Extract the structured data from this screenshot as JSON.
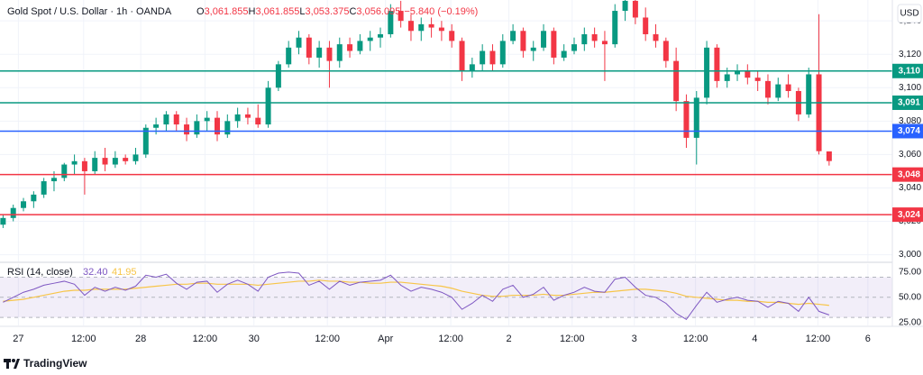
{
  "header": {
    "symbol": "Gold Spot / U.S. Dollar · 1h · OANDA",
    "ohlc": [
      {
        "key": "O",
        "value": "3,061.855"
      },
      {
        "key": "H",
        "value": "3,061.855"
      },
      {
        "key": "L",
        "value": "3,053.375"
      },
      {
        "key": "C",
        "value": "3,056.095"
      }
    ],
    "change": "−5.840 (−0.19%)",
    "currency": "USD"
  },
  "chart_data": [
    {
      "type": "candlestick",
      "up_color": "#089981",
      "down_color": "#f23645",
      "ohlc": [
        [
          3018,
          3024,
          3016,
          3022
        ],
        [
          3022,
          3030,
          3020,
          3028
        ],
        [
          3028,
          3034,
          3026,
          3032
        ],
        [
          3032,
          3038,
          3028,
          3036
        ],
        [
          3036,
          3046,
          3034,
          3044
        ],
        [
          3044,
          3050,
          3038,
          3046
        ],
        [
          3046,
          3055,
          3044,
          3054
        ],
        [
          3054,
          3060,
          3048,
          3056
        ],
        [
          3056,
          3058,
          3036,
          3050
        ],
        [
          3050,
          3062,
          3048,
          3058
        ],
        [
          3058,
          3064,
          3050,
          3054
        ],
        [
          3054,
          3062,
          3052,
          3058
        ],
        [
          3058,
          3060,
          3054,
          3056
        ],
        [
          3056,
          3064,
          3054,
          3060
        ],
        [
          3060,
          3078,
          3058,
          3076
        ],
        [
          3076,
          3082,
          3072,
          3078
        ],
        [
          3078,
          3086,
          3074,
          3084
        ],
        [
          3084,
          3086,
          3074,
          3078
        ],
        [
          3078,
          3082,
          3068,
          3072
        ],
        [
          3072,
          3084,
          3070,
          3080
        ],
        [
          3080,
          3086,
          3074,
          3082
        ],
        [
          3082,
          3086,
          3068,
          3072
        ],
        [
          3072,
          3084,
          3070,
          3080
        ],
        [
          3080,
          3088,
          3076,
          3084
        ],
        [
          3084,
          3088,
          3078,
          3082
        ],
        [
          3082,
          3090,
          3076,
          3078
        ],
        [
          3078,
          3104,
          3076,
          3100
        ],
        [
          3100,
          3116,
          3098,
          3114
        ],
        [
          3114,
          3128,
          3112,
          3124
        ],
        [
          3124,
          3134,
          3120,
          3130
        ],
        [
          3130,
          3132,
          3114,
          3118
        ],
        [
          3118,
          3128,
          3112,
          3124
        ],
        [
          3124,
          3128,
          3100,
          3116
        ],
        [
          3116,
          3130,
          3112,
          3126
        ],
        [
          3126,
          3130,
          3118,
          3122
        ],
        [
          3122,
          3132,
          3120,
          3128
        ],
        [
          3128,
          3134,
          3122,
          3130
        ],
        [
          3130,
          3136,
          3124,
          3132
        ],
        [
          3132,
          3150,
          3130,
          3146
        ],
        [
          3146,
          3152,
          3136,
          3140
        ],
        [
          3140,
          3144,
          3128,
          3134
        ],
        [
          3134,
          3142,
          3128,
          3138
        ],
        [
          3138,
          3142,
          3130,
          3136
        ],
        [
          3136,
          3140,
          3128,
          3134
        ],
        [
          3134,
          3138,
          3124,
          3128
        ],
        [
          3128,
          3130,
          3104,
          3110
        ],
        [
          3110,
          3118,
          3106,
          3114
        ],
        [
          3114,
          3126,
          3110,
          3122
        ],
        [
          3122,
          3126,
          3110,
          3114
        ],
        [
          3114,
          3132,
          3112,
          3128
        ],
        [
          3128,
          3138,
          3126,
          3134
        ],
        [
          3134,
          3136,
          3118,
          3122
        ],
        [
          3122,
          3128,
          3116,
          3124
        ],
        [
          3124,
          3138,
          3122,
          3134
        ],
        [
          3134,
          3136,
          3114,
          3118
        ],
        [
          3118,
          3126,
          3116,
          3122
        ],
        [
          3122,
          3130,
          3120,
          3126
        ],
        [
          3126,
          3136,
          3122,
          3132
        ],
        [
          3132,
          3136,
          3124,
          3128
        ],
        [
          3128,
          3134,
          3104,
          3126
        ],
        [
          3126,
          3150,
          3124,
          3146
        ],
        [
          3146,
          3156,
          3140,
          3152
        ],
        [
          3152,
          3155,
          3138,
          3142
        ],
        [
          3142,
          3148,
          3128,
          3132
        ],
        [
          3132,
          3138,
          3124,
          3128
        ],
        [
          3128,
          3130,
          3112,
          3116
        ],
        [
          3116,
          3124,
          3086,
          3092
        ],
        [
          3092,
          3096,
          3064,
          3070
        ],
        [
          3070,
          3098,
          3054,
          3094
        ],
        [
          3094,
          3128,
          3090,
          3124
        ],
        [
          3124,
          3126,
          3100,
          3104
        ],
        [
          3104,
          3112,
          3100,
          3108
        ],
        [
          3108,
          3114,
          3104,
          3110
        ],
        [
          3110,
          3114,
          3102,
          3106
        ],
        [
          3106,
          3110,
          3098,
          3104
        ],
        [
          3104,
          3108,
          3090,
          3094
        ],
        [
          3094,
          3106,
          3092,
          3102
        ],
        [
          3102,
          3108,
          3094,
          3098
        ],
        [
          3098,
          3100,
          3080,
          3084
        ],
        [
          3084,
          3112,
          3082,
          3108
        ],
        [
          3108,
          3144,
          3060,
          3062
        ],
        [
          3061.855,
          3061.855,
          3053.375,
          3056.095
        ]
      ],
      "xlim": [
        -0.3,
        87.2
      ],
      "xticks": [
        {
          "value": 1.5,
          "label": "27"
        },
        {
          "value": 7.9,
          "label": "12:00"
        },
        {
          "value": 13.5,
          "label": "28"
        },
        {
          "value": 19.8,
          "label": "12:00"
        },
        {
          "value": 24.6,
          "label": "30"
        },
        {
          "value": 31.8,
          "label": "12:00"
        },
        {
          "value": 37.5,
          "label": "Apr"
        },
        {
          "value": 43.9,
          "label": "12:00"
        },
        {
          "value": 49.6,
          "label": "2"
        },
        {
          "value": 55.8,
          "label": "12:00"
        },
        {
          "value": 61.9,
          "label": "3"
        },
        {
          "value": 67.9,
          "label": "12:00"
        },
        {
          "value": 73.7,
          "label": "4"
        },
        {
          "value": 79.9,
          "label": "12:00"
        },
        {
          "value": 84.8,
          "label": "6"
        }
      ],
      "ylim": [
        2996,
        3152.5
      ],
      "yticks": [
        {
          "value": 3000,
          "label": "3,000"
        },
        {
          "value": 3020,
          "label": "3,020"
        },
        {
          "value": 3040,
          "label": "3,040"
        },
        {
          "value": 3060,
          "label": "3,060"
        },
        {
          "value": 3080,
          "label": "3,080"
        },
        {
          "value": 3100,
          "label": "3,100"
        },
        {
          "value": 3120,
          "label": "3,120"
        },
        {
          "value": 3140,
          "label": "3,140"
        }
      ],
      "grid": true,
      "levels": [
        {
          "value": 3110,
          "label": "3,110",
          "color": "#089981"
        },
        {
          "value": 3091,
          "label": "3,091",
          "color": "#089981"
        },
        {
          "value": 3074,
          "label": "3,074",
          "color": "#2962ff"
        },
        {
          "value": 3048,
          "label": "3,048",
          "color": "#f23645"
        },
        {
          "value": 3024,
          "label": "3,024",
          "color": "#f23645"
        }
      ]
    },
    {
      "type": "line",
      "title": "RSI (14, close)",
      "series": [
        {
          "color": "#7e57c2",
          "legend_value": "32.40",
          "values": [
            45,
            50,
            55,
            58,
            62,
            64,
            66,
            63,
            52,
            60,
            56,
            60,
            57,
            61,
            72,
            70,
            73,
            64,
            58,
            65,
            66,
            55,
            63,
            67,
            63,
            56,
            70,
            74,
            75,
            74,
            62,
            66,
            58,
            66,
            62,
            65,
            66,
            67,
            72,
            62,
            56,
            60,
            58,
            55,
            50,
            38,
            44,
            52,
            46,
            58,
            62,
            50,
            53,
            60,
            47,
            52,
            55,
            60,
            56,
            55,
            68,
            70,
            60,
            52,
            50,
            44,
            34,
            28,
            42,
            55,
            45,
            48,
            50,
            47,
            46,
            40,
            46,
            44,
            36,
            50,
            36,
            32.4
          ]
        },
        {
          "color": "#f7c548",
          "legend_value": "41.95",
          "values": [
            46,
            47,
            48,
            50,
            52,
            54,
            56,
            57,
            57,
            58,
            58,
            58,
            58,
            59,
            60,
            61,
            62,
            63,
            63,
            64,
            64,
            63,
            63,
            63,
            63,
            62,
            63,
            64,
            65,
            66,
            66,
            67,
            66,
            66,
            65,
            65,
            64,
            64,
            65,
            65,
            64,
            63,
            62,
            61,
            59,
            56,
            54,
            52,
            51,
            51,
            52,
            52,
            52,
            53,
            52,
            52,
            53,
            54,
            55,
            55,
            56,
            57,
            58,
            58,
            57,
            56,
            54,
            51,
            50,
            49,
            48,
            47,
            47,
            46,
            46,
            45,
            45,
            44,
            43,
            44,
            43,
            41.95
          ]
        }
      ],
      "ylim": [
        22,
        83
      ],
      "yticks": [
        {
          "value": 25,
          "label": "25.00"
        },
        {
          "value": 50,
          "label": "50.00"
        },
        {
          "value": 75,
          "label": "75.00"
        }
      ],
      "levels": [
        70,
        50,
        30
      ]
    }
  ],
  "footer": {
    "brand": "TradingView"
  }
}
